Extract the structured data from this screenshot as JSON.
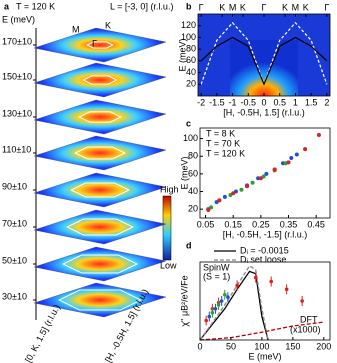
{
  "chart_data": [
    {
      "type": "slices",
      "label": "a",
      "title": "T = 120 K",
      "subtitle": "L = [-3, 0] (r.l.u.)",
      "ylabel": "E (meV)",
      "categories": [
        "170±10",
        "150±10",
        "130±10",
        "110±10",
        "90±10",
        "70±10",
        "50±10",
        "30±10"
      ],
      "points": [
        "M",
        "K",
        "Γ"
      ],
      "colorbar": [
        "High",
        "Low"
      ],
      "xlabel": "[0, K, 1.5] (r.l.u.)",
      "x2label": "[H, -0.5H, 1.5] (r.l.u.)"
    },
    {
      "type": "heatmap",
      "label": "b",
      "ylabel": "E (meV)",
      "xlabel": "[H, -0.5H, 1.5] (r.l.u.)",
      "xlim": [
        -2.1,
        2.1
      ],
      "xticks": [
        -2,
        -1.5,
        -1,
        -0.5,
        0,
        0.5,
        1,
        1.5,
        2
      ],
      "top_ticks": [
        {
          "value": -2,
          "label": "Γ"
        },
        {
          "value": -1.33,
          "label": "K"
        },
        {
          "value": -1,
          "label": "M"
        },
        {
          "value": -0.67,
          "label": "K"
        },
        {
          "value": 0,
          "label": "Γ"
        },
        {
          "value": 0.67,
          "label": "K"
        },
        {
          "value": 1,
          "label": "M"
        },
        {
          "value": 1.33,
          "label": "K"
        },
        {
          "value": 2,
          "label": "Γ"
        }
      ],
      "ylim": [
        0,
        140
      ],
      "yticks": [
        20,
        40,
        60,
        80,
        100,
        120
      ],
      "x": [
        -2,
        -1.5,
        -1,
        -0.5,
        0,
        0.5,
        1,
        1.5,
        2
      ],
      "series": [
        {
          "color": "#ffffff",
          "dash": true,
          "values": [
            20,
            95,
            125,
            95,
            20,
            95,
            125,
            95,
            20
          ]
        },
        {
          "color": "#000000",
          "dash": false,
          "values": [
            60,
            85,
            100,
            85,
            20,
            85,
            100,
            85,
            60
          ]
        }
      ]
    },
    {
      "type": "scatter",
      "label": "c",
      "ylabel": "E (meV)",
      "xlabel": "[H, -0.5H, -1.5] (r.l.u.)",
      "xlim": [
        0.03,
        0.5
      ],
      "xticks": [
        0.05,
        0.15,
        0.25,
        0.35,
        0.45
      ],
      "ylim": [
        10,
        112
      ],
      "yticks": [
        20,
        40,
        60,
        80,
        100
      ],
      "series": [
        {
          "name": "T = 8 K",
          "color": "#1f4fe0",
          "x": [
            0.06,
            0.09,
            0.12,
            0.16,
            0.2,
            0.24,
            0.27,
            0.3,
            0.33,
            0.36,
            0.38
          ],
          "values": [
            20,
            28,
            34,
            40,
            47,
            55,
            60,
            65,
            72,
            78,
            82
          ]
        },
        {
          "name": "T = 70 K",
          "color": "#2ca02c",
          "x": [
            0.07,
            0.1,
            0.14,
            0.18,
            0.22,
            0.26,
            0.3,
            0.34
          ],
          "values": [
            22,
            30,
            36,
            42,
            50,
            57,
            64,
            72
          ]
        },
        {
          "name": "T = 120 K",
          "color": "#e02020",
          "x": [
            0.06,
            0.1,
            0.15,
            0.2,
            0.25,
            0.3,
            0.35,
            0.41,
            0.46
          ],
          "values": [
            19,
            30,
            38,
            46,
            55,
            65,
            73,
            88,
            104
          ]
        }
      ]
    },
    {
      "type": "line",
      "label": "d",
      "ylabel": "χ'' μB²/eV/Fe",
      "xlabel": "E (meV)",
      "xlim": [
        0,
        210
      ],
      "xticks": [
        0,
        50,
        100,
        150,
        200
      ],
      "ylim": [
        0,
        10
      ],
      "annotations": [
        "SpinW",
        "(S = 1)",
        "DFT",
        "(x1000)"
      ],
      "lines": [
        {
          "name": "Dᵢ = -0.0015",
          "color": "#000000",
          "dash": false,
          "x": [
            0,
            20,
            40,
            60,
            80,
            90,
            100,
            110
          ],
          "values": [
            0,
            2,
            4,
            6.5,
            8.8,
            8.5,
            3,
            0
          ]
        },
        {
          "name": "Dᵢ set loose",
          "color": "#888888",
          "dash": true,
          "x": [
            0,
            20,
            40,
            60,
            80,
            90,
            100,
            110
          ],
          "values": [
            0,
            2.2,
            4.5,
            7,
            9.5,
            9,
            4,
            0
          ]
        },
        {
          "color": "#c00000",
          "dash": true,
          "x": [
            0,
            50,
            100,
            150,
            200
          ],
          "values": [
            0,
            0.3,
            1,
            1.8,
            2.3
          ]
        }
      ],
      "points": [
        {
          "color": "#e02020",
          "x": [
            10,
            20,
            30,
            60,
            90,
            115,
            140,
            165
          ],
          "values": [
            2.5,
            4,
            4.8,
            7,
            8,
            7.5,
            6.5,
            5
          ]
        },
        {
          "color": "#1f4fe0",
          "x": [
            15,
            25,
            35,
            45
          ],
          "values": [
            3,
            4,
            5,
            5.5
          ]
        },
        {
          "color": "#2ca02c",
          "x": [
            20,
            30,
            40
          ],
          "values": [
            3.5,
            4.5,
            5.8
          ]
        }
      ]
    }
  ]
}
